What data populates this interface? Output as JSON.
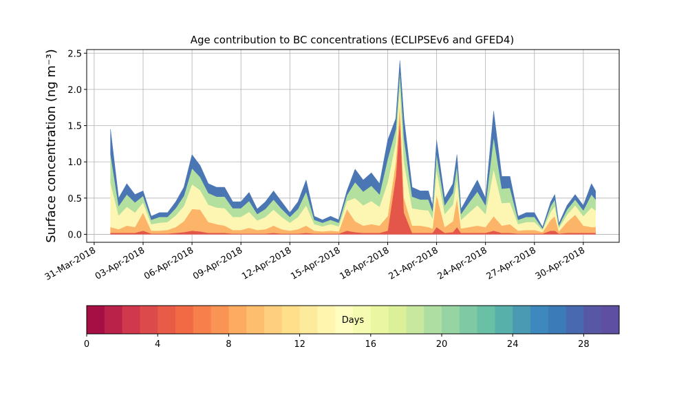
{
  "chart_data": {
    "type": "stacked_area",
    "title": "Age contribution to BC concentrations (ECLIPSEv6 and GFED4)",
    "y_label": "Surface concentration (ng m⁻³)",
    "x": [
      1,
      1.5,
      2,
      2.5,
      3,
      3.5,
      4,
      4.5,
      5,
      5.5,
      6,
      6.5,
      7,
      7.5,
      8,
      8.5,
      9,
      9.5,
      10,
      10.5,
      11,
      11.5,
      12,
      12.5,
      13,
      13.5,
      14,
      14.5,
      15,
      15.5,
      16,
      16.5,
      17,
      17.5,
      18,
      18.5,
      18.75,
      19,
      19.5,
      20,
      20.5,
      20.75,
      21,
      21.5,
      22,
      22.25,
      22.5,
      23,
      23.5,
      24,
      24.5,
      25,
      25.5,
      26,
      26.5,
      27,
      27.5,
      28,
      28.25,
      28.5,
      29,
      29.5,
      30,
      30.5,
      30.75
    ],
    "series": [
      {
        "color": "#e5564a",
        "values": [
          0.02,
          0.02,
          0.02,
          0.02,
          0.05,
          0.01,
          0.01,
          0.01,
          0.02,
          0.03,
          0.05,
          0.04,
          0.02,
          0.02,
          0.02,
          0.01,
          0.01,
          0.01,
          0.01,
          0.01,
          0.02,
          0.01,
          0.01,
          0.01,
          0.02,
          0.01,
          0.01,
          0.01,
          0.01,
          0.05,
          0.03,
          0.02,
          0.02,
          0.02,
          0.05,
          0.8,
          1.6,
          0.3,
          0.02,
          0.02,
          0.02,
          0.02,
          0.1,
          0.02,
          0.03,
          0.1,
          0.02,
          0.02,
          0.02,
          0.02,
          0.05,
          0.02,
          0.02,
          0.01,
          0.01,
          0.01,
          0.01,
          0.05,
          0.05,
          0.01,
          0.02,
          0.02,
          0.02,
          0.02,
          0.02
        ]
      },
      {
        "color": "#fbb468",
        "values": [
          0.08,
          0.05,
          0.1,
          0.08,
          0.25,
          0.04,
          0.04,
          0.05,
          0.08,
          0.15,
          0.3,
          0.3,
          0.15,
          0.12,
          0.1,
          0.05,
          0.05,
          0.08,
          0.05,
          0.06,
          0.1,
          0.06,
          0.04,
          0.06,
          0.1,
          0.04,
          0.03,
          0.04,
          0.03,
          0.3,
          0.15,
          0.1,
          0.12,
          0.1,
          0.2,
          0.2,
          0.2,
          0.2,
          0.1,
          0.1,
          0.08,
          0.06,
          0.45,
          0.08,
          0.15,
          0.4,
          0.06,
          0.08,
          0.1,
          0.08,
          0.2,
          0.1,
          0.12,
          0.04,
          0.05,
          0.05,
          0.02,
          0.15,
          0.2,
          0.03,
          0.15,
          0.25,
          0.1,
          0.08,
          0.08
        ]
      },
      {
        "color": "#fdf6b2",
        "values": [
          0.61,
          0.19,
          0.26,
          0.2,
          0.14,
          0.09,
          0.11,
          0.11,
          0.16,
          0.21,
          0.34,
          0.27,
          0.24,
          0.23,
          0.24,
          0.18,
          0.18,
          0.22,
          0.13,
          0.17,
          0.22,
          0.17,
          0.11,
          0.17,
          0.28,
          0.09,
          0.07,
          0.09,
          0.07,
          0.11,
          0.32,
          0.28,
          0.32,
          0.26,
          0.47,
          0.27,
          0.27,
          0.5,
          0.24,
          0.22,
          0.23,
          0.14,
          0.34,
          0.18,
          0.23,
          0.27,
          0.12,
          0.2,
          0.28,
          0.18,
          0.65,
          0.31,
          0.3,
          0.09,
          0.11,
          0.11,
          0.03,
          0.11,
          0.14,
          0.05,
          0.1,
          0.13,
          0.13,
          0.27,
          0.23
        ]
      },
      {
        "color": "#b4e09f",
        "values": [
          0.4,
          0.13,
          0.17,
          0.14,
          0.09,
          0.06,
          0.08,
          0.07,
          0.1,
          0.14,
          0.22,
          0.18,
          0.16,
          0.15,
          0.16,
          0.12,
          0.12,
          0.15,
          0.09,
          0.11,
          0.14,
          0.11,
          0.08,
          0.11,
          0.19,
          0.06,
          0.05,
          0.06,
          0.05,
          0.08,
          0.22,
          0.19,
          0.21,
          0.17,
          0.32,
          0.18,
          0.18,
          0.33,
          0.16,
          0.14,
          0.15,
          0.1,
          0.22,
          0.12,
          0.16,
          0.18,
          0.08,
          0.14,
          0.19,
          0.12,
          0.44,
          0.2,
          0.2,
          0.06,
          0.07,
          0.07,
          0.02,
          0.08,
          0.09,
          0.03,
          0.07,
          0.08,
          0.08,
          0.18,
          0.15
        ]
      },
      {
        "color": "#4a77b4",
        "values": [
          0.34,
          0.11,
          0.15,
          0.11,
          0.07,
          0.05,
          0.06,
          0.06,
          0.09,
          0.12,
          0.19,
          0.16,
          0.13,
          0.13,
          0.13,
          0.09,
          0.09,
          0.12,
          0.07,
          0.1,
          0.12,
          0.1,
          0.06,
          0.1,
          0.16,
          0.05,
          0.04,
          0.05,
          0.04,
          0.06,
          0.18,
          0.16,
          0.18,
          0.15,
          0.26,
          0.15,
          0.15,
          0.27,
          0.13,
          0.12,
          0.12,
          0.08,
          0.19,
          0.1,
          0.13,
          0.15,
          0.07,
          0.11,
          0.16,
          0.1,
          0.36,
          0.17,
          0.16,
          0.05,
          0.06,
          0.06,
          0.02,
          0.06,
          0.07,
          0.03,
          0.06,
          0.07,
          0.07,
          0.15,
          0.12
        ]
      }
    ],
    "xlim": [
      -0.46,
      32.2
    ],
    "xticks": [
      {
        "value": 0,
        "label": "31-Mar-2018"
      },
      {
        "value": 3,
        "label": "03-Apr-2018"
      },
      {
        "value": 6,
        "label": "06-Apr-2018"
      },
      {
        "value": 9,
        "label": "09-Apr-2018"
      },
      {
        "value": 12,
        "label": "12-Apr-2018"
      },
      {
        "value": 15,
        "label": "15-Apr-2018"
      },
      {
        "value": 18,
        "label": "18-Apr-2018"
      },
      {
        "value": 21,
        "label": "21-Apr-2018"
      },
      {
        "value": 24,
        "label": "24-Apr-2018"
      },
      {
        "value": 27,
        "label": "27-Apr-2018"
      },
      {
        "value": 30,
        "label": "30-Apr-2018"
      }
    ],
    "ylim": [
      -0.11,
      2.55
    ],
    "yticks": [
      {
        "value": 0,
        "label": "0.0"
      },
      {
        "value": 0.5,
        "label": "0.5"
      },
      {
        "value": 1,
        "label": "1.0"
      },
      {
        "value": 1.5,
        "label": "1.5"
      },
      {
        "value": 2,
        "label": "2.0"
      },
      {
        "value": 2.5,
        "label": "2.5"
      }
    ],
    "grid": true,
    "colorbar": {
      "label": "Days",
      "lim": [
        0,
        30
      ],
      "ticks": [
        0,
        4,
        8,
        12,
        16,
        20,
        24,
        28
      ],
      "colors": [
        "#a50f43",
        "#bb2249",
        "#cf384d",
        "#dc4a4c",
        "#e85b47",
        "#f16a44",
        "#f67f4b",
        "#f99455",
        "#fcab60",
        "#fdbe6e",
        "#fdcf7e",
        "#fee08b",
        "#feea9b",
        "#fff5ae",
        "#fffebe",
        "#f6fbb2",
        "#ebf7a0",
        "#dcf09a",
        "#c7e89e",
        "#afdea2",
        "#97d4a4",
        "#7fcaa5",
        "#69c0a5",
        "#58b0aa",
        "#4b9ab3",
        "#3d88bc",
        "#3b7bb7",
        "#4869ae",
        "#5757a6",
        "#5e4fa2"
      ]
    }
  }
}
